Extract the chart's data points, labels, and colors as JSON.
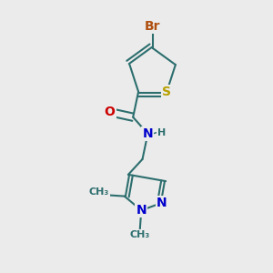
{
  "bg_color": "#ebebeb",
  "bond_color": "#2d6e6e",
  "bond_width": 1.5,
  "atom_colors": {
    "Br": "#b05010",
    "S": "#b8a000",
    "O": "#cc0000",
    "N": "#0000cc",
    "C": "#2d6e6e",
    "H": "#2d6e6e"
  },
  "font_size": 9,
  "figsize": [
    3.0,
    3.0
  ],
  "dpi": 100
}
